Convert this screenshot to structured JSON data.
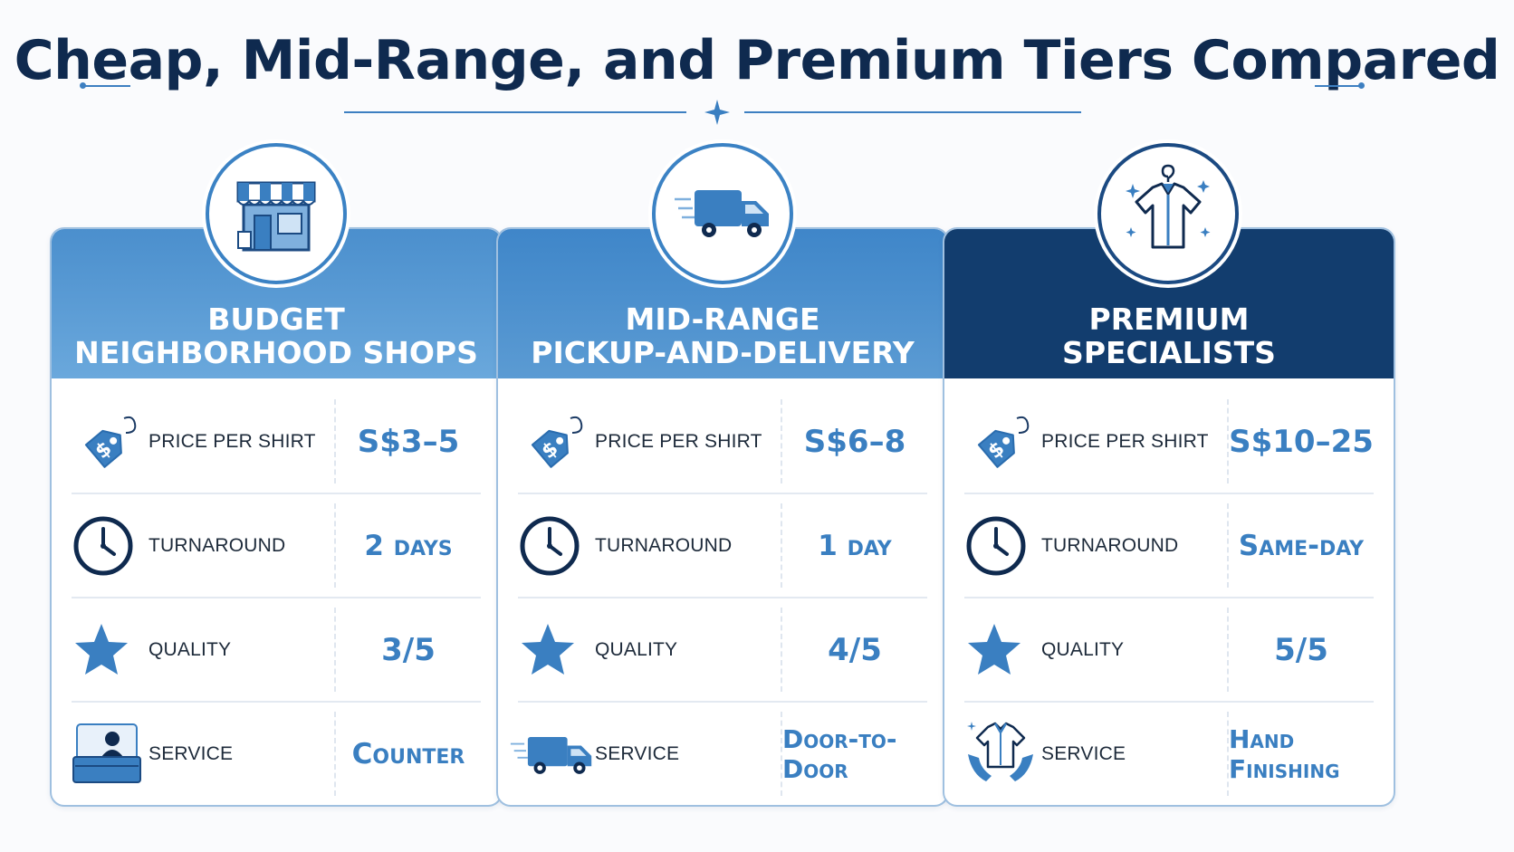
{
  "title": "Cheap, Mid-Range, and Premium Tiers Compared",
  "colors": {
    "navy": "#0f2a4f",
    "accent_blue": "#3a7fc1",
    "budget_header": "#5b9bd3",
    "midrange_header": "#4a8cc8",
    "premium_header": "#123d6e"
  },
  "tiers": [
    {
      "title_line1": "Budget",
      "title_line2": "Neighborhood Shops",
      "icon": "storefront-icon",
      "rows": {
        "price": {
          "label": "Price per shirt",
          "value": "S$3–5"
        },
        "turnaround": {
          "label": "Turnaround",
          "value": "2 days"
        },
        "quality": {
          "label": "Quality",
          "value": "3/5"
        },
        "service": {
          "label": "Service",
          "value": "Counter"
        }
      }
    },
    {
      "title_line1": "Mid-Range",
      "title_line2": "Pickup-and-Delivery",
      "icon": "delivery-van-icon",
      "rows": {
        "price": {
          "label": "Price per shirt",
          "value": "S$6–8"
        },
        "turnaround": {
          "label": "Turnaround",
          "value": "1 day"
        },
        "quality": {
          "label": "Quality",
          "value": "4/5"
        },
        "service": {
          "label": "Service",
          "value": "Door-to-Door"
        }
      }
    },
    {
      "title_line1": "Premium",
      "title_line2": "Specialists",
      "icon": "shirt-hanger-icon",
      "rows": {
        "price": {
          "label": "Price per shirt",
          "value": "S$10–25"
        },
        "turnaround": {
          "label": "Turnaround",
          "value": "Same-day"
        },
        "quality": {
          "label": "Quality",
          "value": "5/5"
        },
        "service": {
          "label": "Service",
          "value": "Hand Finishing"
        }
      }
    }
  ]
}
